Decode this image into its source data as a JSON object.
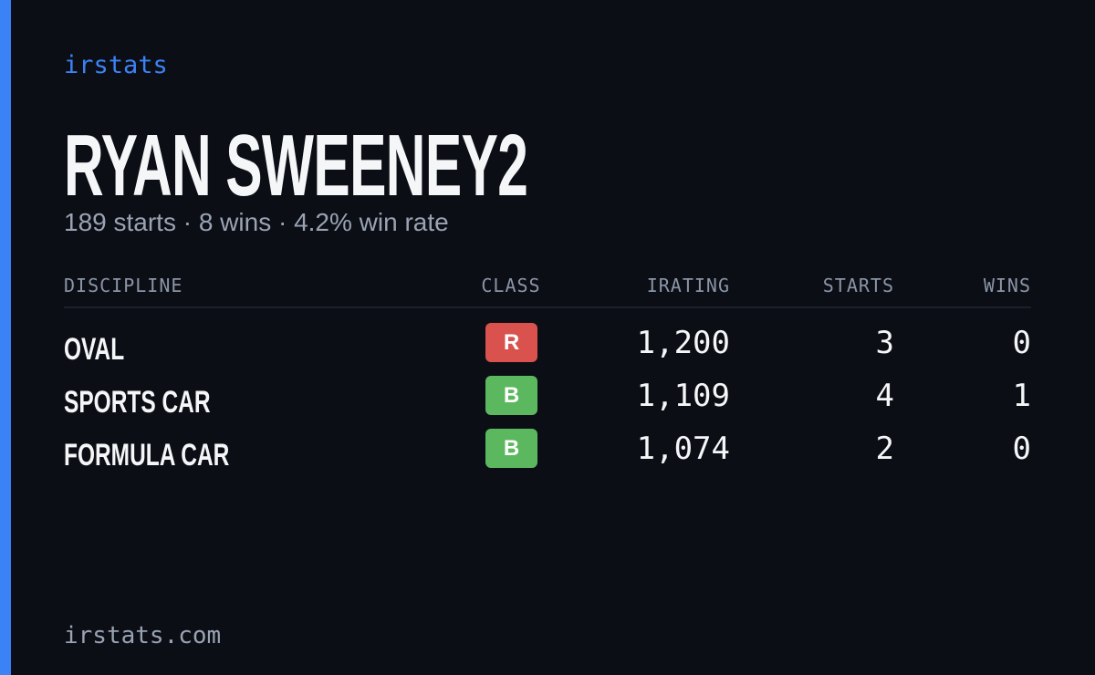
{
  "header": {
    "brand": "irstats",
    "title": "RYAN SWEENEY2",
    "subtitle": "189 starts · 8 wins · 4.2% win rate"
  },
  "table": {
    "columns": [
      "DISCIPLINE",
      "CLASS",
      "IRATING",
      "STARTS",
      "WINS"
    ],
    "rows": [
      [
        {
          "label": "OVAL"
        },
        {
          "label": "R",
          "color": "#d9524d"
        },
        {
          "label": "1,200"
        },
        {
          "label": "3"
        },
        {
          "label": "0"
        }
      ],
      [
        {
          "label": "SPORTS CAR"
        },
        {
          "label": "B",
          "color": "#5cb85f"
        },
        {
          "label": "1,109"
        },
        {
          "label": "4"
        },
        {
          "label": "1"
        }
      ],
      [
        {
          "label": "FORMULA CAR"
        },
        {
          "label": "B",
          "color": "#5cb85f"
        },
        {
          "label": "1,074"
        },
        {
          "label": "2"
        },
        {
          "label": "0"
        }
      ]
    ]
  },
  "footer": {
    "url": "irstats.com"
  }
}
